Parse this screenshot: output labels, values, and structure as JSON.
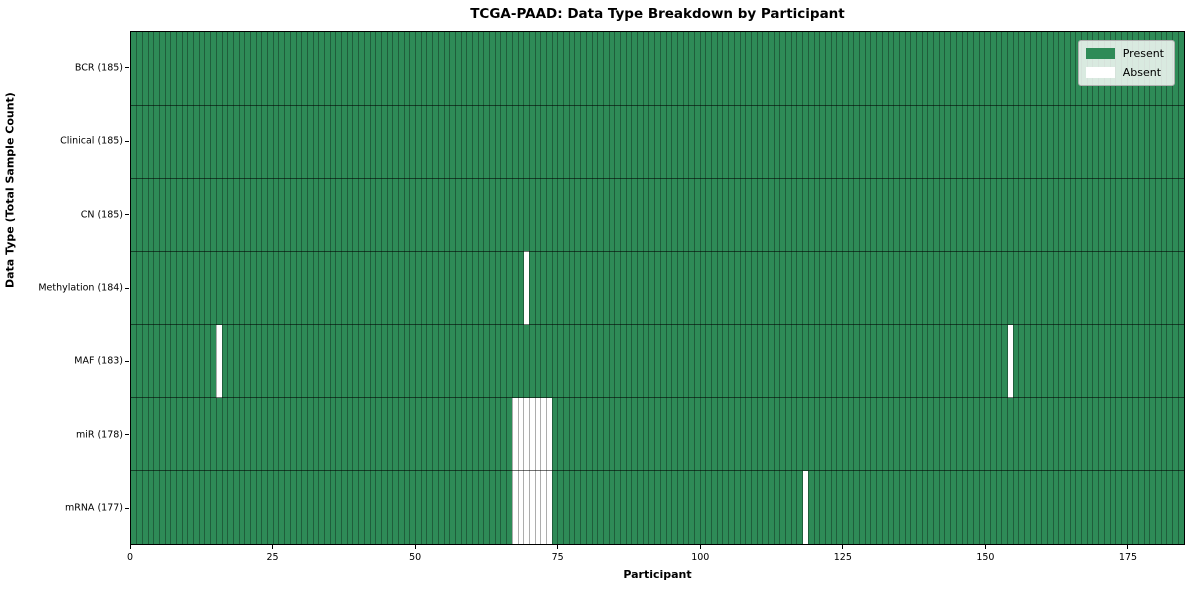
{
  "chart_data": {
    "type": "heatmap",
    "title": "TCGA-PAAD: Data Type Breakdown by Participant",
    "xlabel": "Participant",
    "ylabel": "Data Type (Total Sample Count)",
    "n_participants": 185,
    "xlim": [
      0,
      185
    ],
    "x_ticks": [
      0,
      25,
      50,
      75,
      100,
      125,
      150,
      175
    ],
    "grid": false,
    "colors": {
      "present": "#2e8b57",
      "absent": "#ffffff"
    },
    "legend": {
      "position": "upper right",
      "entries": [
        {
          "label": "Present",
          "color": "#2e8b57"
        },
        {
          "label": "Absent",
          "color": "#ffffff"
        }
      ]
    },
    "rows": [
      {
        "label": "BCR (185)",
        "data_type": "BCR",
        "present_count": 185,
        "absent_participants": []
      },
      {
        "label": "Clinical (185)",
        "data_type": "Clinical",
        "present_count": 185,
        "absent_participants": []
      },
      {
        "label": "CN (185)",
        "data_type": "CN",
        "present_count": 185,
        "absent_participants": []
      },
      {
        "label": "Methylation (184)",
        "data_type": "Methylation",
        "present_count": 184,
        "absent_participants": [
          69
        ]
      },
      {
        "label": "MAF (183)",
        "data_type": "MAF",
        "present_count": 183,
        "absent_participants": [
          15,
          154
        ]
      },
      {
        "label": "miR (178)",
        "data_type": "miR",
        "present_count": 178,
        "absent_participants": [
          67,
          68,
          69,
          70,
          71,
          72,
          73
        ]
      },
      {
        "label": "mRNA (177)",
        "data_type": "mRNA",
        "present_count": 177,
        "absent_participants": [
          67,
          68,
          69,
          70,
          71,
          72,
          73,
          118
        ]
      }
    ]
  }
}
